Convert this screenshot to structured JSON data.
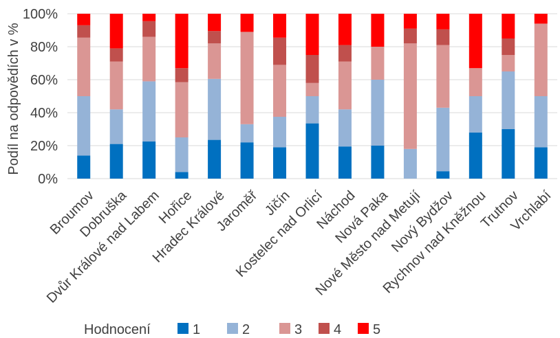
{
  "chart_data": {
    "type": "bar",
    "stacked": true,
    "percent": true,
    "title": "",
    "xlabel": "",
    "ylabel": "Podíl na odpovědích v %",
    "ylim": [
      0,
      100
    ],
    "yticks": [
      "0%",
      "20%",
      "40%",
      "60%",
      "80%",
      "100%"
    ],
    "grid": "horizontal",
    "legend_position": "bottom",
    "legend_title": "Hodnocení",
    "categories": [
      "Broumov",
      "Dobruška",
      "Dvůr Králové nad Labem",
      "Hořice",
      "Hradec Králové",
      "Jaroměř",
      "Jičín",
      "Kostelec nad Orlicí",
      "Náchod",
      "Nová Paka",
      "Nové Město nad Metují",
      "Nový Bydžov",
      "Rychnov nad Kněžnou",
      "Trutnov",
      "Vrchlabí"
    ],
    "series": [
      {
        "name": "1",
        "color": "#0070c0",
        "values": [
          14,
          21,
          22.5,
          4,
          23.5,
          22,
          19,
          33.5,
          19.5,
          20,
          0,
          4.5,
          28,
          30,
          19
        ]
      },
      {
        "name": "2",
        "color": "#95b3d7",
        "values": [
          36,
          21,
          36.5,
          21,
          37,
          11,
          18.5,
          16.5,
          22.5,
          40,
          18,
          38.5,
          22,
          35,
          31
        ]
      },
      {
        "name": "3",
        "color": "#da9694",
        "values": [
          35.5,
          29,
          27,
          33.5,
          21.5,
          56,
          31.5,
          8,
          29,
          20,
          64,
          38,
          17,
          10,
          44
        ]
      },
      {
        "name": "4",
        "color": "#c0504d",
        "values": [
          7.5,
          8,
          9.5,
          8.5,
          7.5,
          0,
          16.5,
          17,
          10,
          0,
          9,
          9.5,
          0,
          10,
          0
        ]
      },
      {
        "name": "5",
        "color": "#ff0000",
        "values": [
          7,
          21,
          4.5,
          33,
          10.5,
          11,
          14.5,
          25,
          19,
          20,
          9,
          9.5,
          33,
          15,
          6
        ]
      }
    ]
  }
}
